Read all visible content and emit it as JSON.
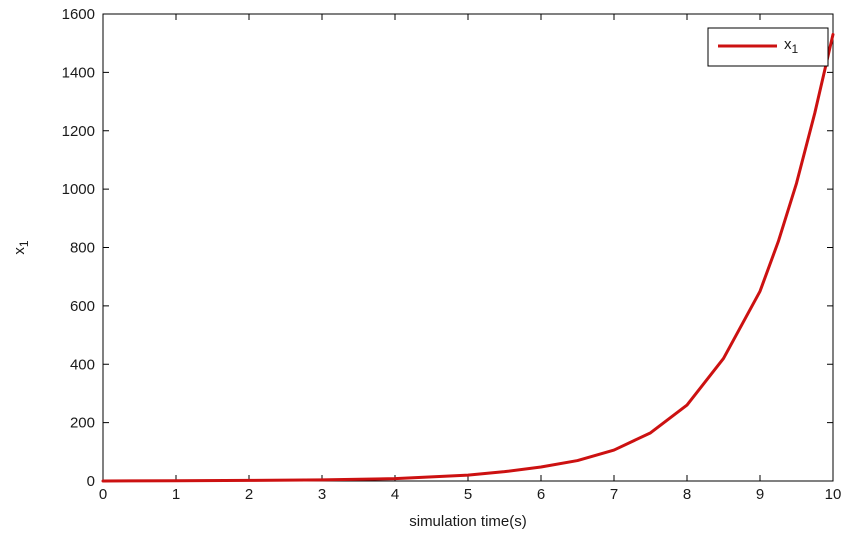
{
  "chart_data": {
    "type": "line",
    "title": "",
    "xlabel": "simulation time(s)",
    "ylabel": "x",
    "ylabel_subscript": "1",
    "xlim": [
      0,
      10
    ],
    "ylim": [
      0,
      1600
    ],
    "xticks": [
      0,
      1,
      2,
      3,
      4,
      5,
      6,
      7,
      8,
      9,
      10
    ],
    "yticks": [
      0,
      200,
      400,
      600,
      800,
      1000,
      1200,
      1400,
      1600
    ],
    "grid": false,
    "legend_placement": "top-right",
    "series": [
      {
        "name": "x",
        "name_subscript": "1",
        "color": "#cc1111",
        "x": [
          0,
          1,
          2,
          3,
          4,
          5,
          5.5,
          6,
          6.5,
          7,
          7.5,
          8,
          8.5,
          9,
          9.25,
          9.5,
          9.75,
          10
        ],
        "y": [
          0,
          1,
          2,
          4,
          8,
          20,
          32,
          48,
          70,
          106,
          165,
          260,
          420,
          650,
          820,
          1020,
          1260,
          1530
        ]
      }
    ]
  }
}
